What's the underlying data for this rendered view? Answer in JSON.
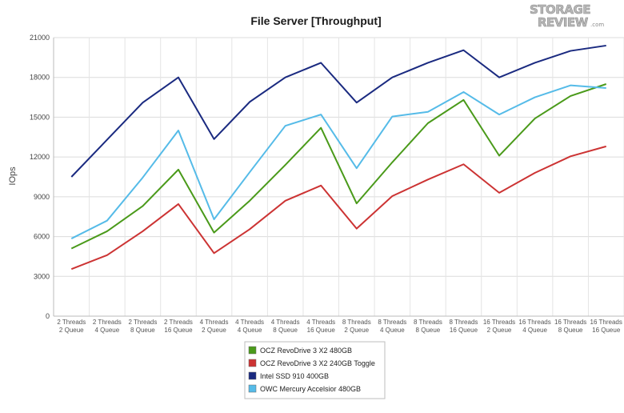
{
  "logo": {
    "line1": "STORAGE",
    "line2": "REVIEW",
    "suffix": ".com"
  },
  "chart_data": {
    "type": "line",
    "title": "File Server [Throughput]",
    "xlabel": "",
    "ylabel": "IOps",
    "ylim": [
      0,
      21000
    ],
    "yticks": [
      0,
      3000,
      6000,
      9000,
      12000,
      15000,
      18000,
      21000
    ],
    "grid": true,
    "legend_position": "bottom-center",
    "categories": [
      [
        "2 Threads",
        "2 Queue"
      ],
      [
        "2 Threads",
        "4 Queue"
      ],
      [
        "2 Threads",
        "8 Queue"
      ],
      [
        "2 Threads",
        "16 Queue"
      ],
      [
        "4 Threads",
        "2 Queue"
      ],
      [
        "4 Threads",
        "4 Queue"
      ],
      [
        "4 Threads",
        "8 Queue"
      ],
      [
        "4 Threads",
        "16 Queue"
      ],
      [
        "8 Threads",
        "2 Queue"
      ],
      [
        "8 Threads",
        "4 Queue"
      ],
      [
        "8 Threads",
        "8 Queue"
      ],
      [
        "8 Threads",
        "16 Queue"
      ],
      [
        "16 Threads",
        "2 Queue"
      ],
      [
        "16 Threads",
        "4 Queue"
      ],
      [
        "16 Threads",
        "8 Queue"
      ],
      [
        "16 Threads",
        "16 Queue"
      ]
    ],
    "series": [
      {
        "name": "OCZ RevoDrive 3 X2 480GB",
        "color": "#4a9a1a",
        "values": [
          5100,
          6400,
          8300,
          11050,
          6300,
          8700,
          11400,
          14200,
          8500,
          11600,
          14550,
          16300,
          12100,
          14900,
          16600,
          17500
        ]
      },
      {
        "name": "OCZ RevoDrive 3 X2 240GB Toggle",
        "color": "#cc3333",
        "values": [
          3550,
          4600,
          6400,
          8450,
          4750,
          6550,
          8700,
          9850,
          6600,
          9050,
          10300,
          11450,
          9300,
          10800,
          12050,
          12800
        ]
      },
      {
        "name": "Intel SSD 910 400GB",
        "color": "#1a2a80",
        "values": [
          10500,
          13300,
          16100,
          18000,
          13350,
          16150,
          18000,
          19100,
          16100,
          18000,
          19100,
          20050,
          18000,
          19100,
          20000,
          20400
        ]
      },
      {
        "name": "OWC Mercury Accelsior 480GB",
        "color": "#55bbe8",
        "values": [
          5850,
          7200,
          10450,
          14000,
          7300,
          10850,
          14350,
          15200,
          11150,
          15050,
          15400,
          16900,
          15200,
          16500,
          17400,
          17200
        ]
      }
    ]
  }
}
